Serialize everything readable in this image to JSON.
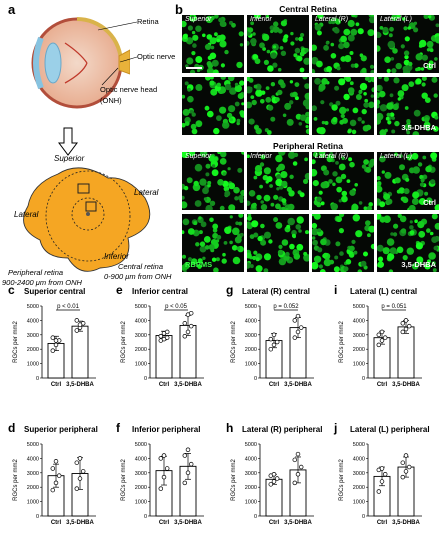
{
  "panel_a": {
    "label": "a",
    "eye_labels": [
      "Retina",
      "Optic nerve",
      "Optic nerve head",
      "(ONH)"
    ],
    "flatmount_labels": {
      "superior": "Superior",
      "lateral_right": "Lateral",
      "lateral_left": "Lateral",
      "inferior": "Inferior",
      "peripheral_1": "Peripheral retina",
      "peripheral_2": "900-2400 μm from ONH",
      "central_1": "Central retina",
      "central_2": "0-900 μm from ONH"
    }
  },
  "panel_b": {
    "label": "b",
    "central_header": "Central Retina",
    "peripheral_header": "Peripheral Retina",
    "columns": [
      "Superior",
      "Inferior",
      "Lateral (R)",
      "Lateral (L)"
    ],
    "row_ctrl": "Ctrl",
    "row_treat": "3,5-DHBA",
    "stain_label": "RBPMS"
  },
  "chart_data": [
    {
      "panel": "c",
      "type": "bar",
      "title": "Superior central",
      "categories": [
        "Ctrl",
        "3,5-DHBA"
      ],
      "values": [
        2400,
        3600
      ],
      "errors": [
        500,
        350
      ],
      "points": [
        [
          1900,
          2300,
          2600,
          2800,
          2600
        ],
        [
          3300,
          3500,
          3800,
          4000,
          3700
        ]
      ],
      "ylabel": "RGCs per mm2",
      "ylim": [
        0,
        5000
      ],
      "yticks": [
        0,
        1000,
        2000,
        3000,
        4000,
        5000
      ],
      "pvalue": "p < 0.01"
    },
    {
      "panel": "e",
      "type": "bar",
      "title": "Inferior central",
      "categories": [
        "Ctrl",
        "3,5-DHBA"
      ],
      "values": [
        2950,
        3650
      ],
      "errors": [
        300,
        700
      ],
      "points": [
        [
          2600,
          2700,
          2800,
          2900,
          3100,
          3200
        ],
        [
          2900,
          3200,
          3600,
          3800,
          4400,
          4500
        ]
      ],
      "ylabel": "RGCs per mm2",
      "ylim": [
        0,
        5000
      ],
      "yticks": [
        0,
        1000,
        2000,
        3000,
        4000,
        5000
      ],
      "pvalue": "p < 0.05"
    },
    {
      "panel": "g",
      "type": "bar",
      "title": "Lateral (R) central",
      "categories": [
        "Ctrl",
        "3,5-DHBA"
      ],
      "values": [
        2600,
        3500
      ],
      "errors": [
        500,
        700
      ],
      "points": [
        [
          2000,
          2300,
          2500,
          2700,
          3000
        ],
        [
          2800,
          3200,
          3500,
          4000,
          4300
        ]
      ],
      "ylabel": "RGCs per mm2",
      "ylim": [
        0,
        5000
      ],
      "yticks": [
        0,
        1000,
        2000,
        3000,
        4000,
        5000
      ],
      "pvalue": "p = 0.052"
    },
    {
      "panel": "i",
      "type": "bar",
      "title": "Lateral (L) central",
      "categories": [
        "Ctrl",
        "3,5-DHBA"
      ],
      "values": [
        2800,
        3550
      ],
      "errors": [
        450,
        450
      ],
      "points": [
        [
          2300,
          2600,
          2800,
          3000,
          3200
        ],
        [
          3200,
          3400,
          3600,
          3800,
          4000
        ]
      ],
      "ylabel": "RGCs per mm2",
      "ylim": [
        0,
        5000
      ],
      "yticks": [
        0,
        1000,
        2000,
        3000,
        4000,
        5000
      ],
      "pvalue": "p = 0.051"
    },
    {
      "panel": "d",
      "type": "bar",
      "title": "Superior peripheral",
      "categories": [
        "Ctrl",
        "3,5-DHBA"
      ],
      "values": [
        2800,
        2950
      ],
      "errors": [
        800,
        1100
      ],
      "points": [
        [
          1800,
          2300,
          2800,
          3300,
          3800
        ],
        [
          1900,
          2600,
          3100,
          3700,
          4000
        ]
      ],
      "ylabel": "RGCs per mm2",
      "ylim": [
        0,
        5000
      ],
      "yticks": [
        0,
        1000,
        2000,
        3000,
        4000,
        5000
      ]
    },
    {
      "panel": "f",
      "type": "bar",
      "title": "Inferior peripheral",
      "categories": [
        "Ctrl",
        "3,5-DHBA"
      ],
      "values": [
        3150,
        3450
      ],
      "errors": [
        1000,
        900
      ],
      "points": [
        [
          1900,
          2700,
          3300,
          4000,
          4200
        ],
        [
          2300,
          3000,
          3600,
          4200,
          4600
        ]
      ],
      "ylabel": "RGCs per mm2",
      "ylim": [
        0,
        5000
      ],
      "yticks": [
        0,
        1000,
        2000,
        3000,
        4000,
        5000
      ]
    },
    {
      "panel": "h",
      "type": "bar",
      "title": "Lateral (R) peripheral",
      "categories": [
        "Ctrl",
        "3,5-DHBA"
      ],
      "values": [
        2550,
        3200
      ],
      "errors": [
        350,
        900
      ],
      "points": [
        [
          2200,
          2400,
          2600,
          2800,
          2900
        ],
        [
          2300,
          2900,
          3400,
          3900,
          4300
        ]
      ],
      "ylabel": "RGCs per mm2",
      "ylim": [
        0,
        5000
      ],
      "yticks": [
        0,
        1000,
        2000,
        3000,
        4000,
        5000
      ]
    },
    {
      "panel": "j",
      "type": "bar",
      "title": "Lateral (L) peripheral",
      "categories": [
        "Ctrl",
        "3,5-DHBA"
      ],
      "values": [
        2750,
        3400
      ],
      "errors": [
        650,
        700
      ],
      "points": [
        [
          1700,
          2400,
          2900,
          3200,
          3300
        ],
        [
          2700,
          3100,
          3400,
          3700,
          4200
        ]
      ],
      "ylabel": "RGCs per mm2",
      "ylim": [
        0,
        5000
      ],
      "yticks": [
        0,
        1000,
        2000,
        3000,
        4000,
        5000
      ]
    }
  ]
}
